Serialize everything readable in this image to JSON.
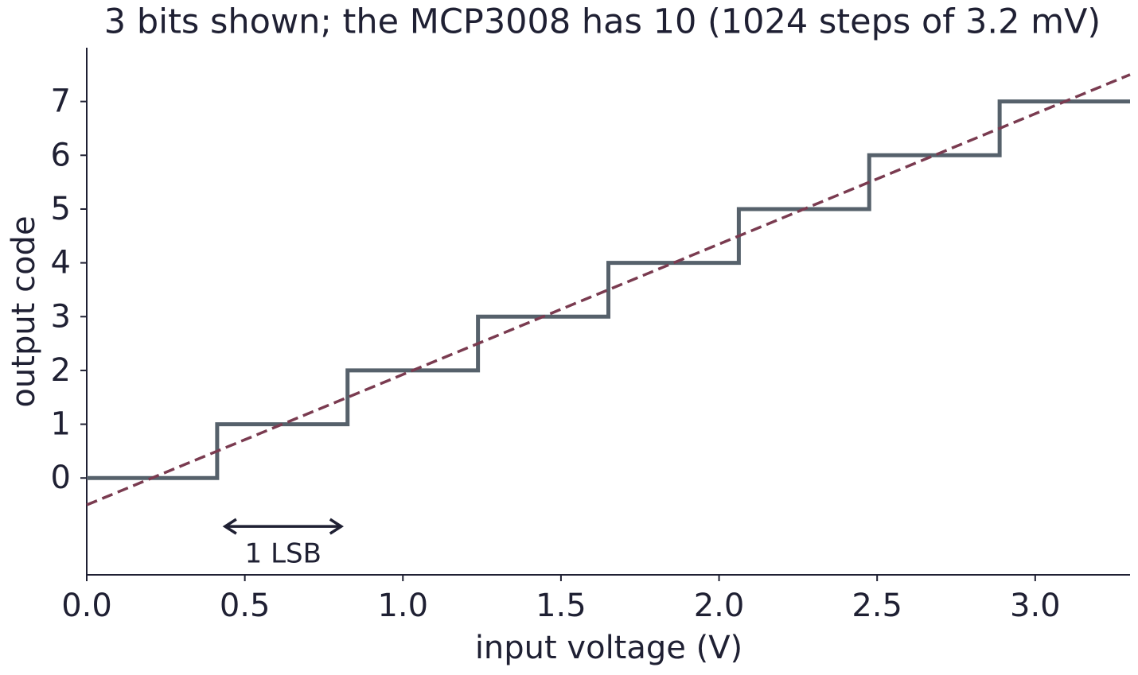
{
  "chart_data": {
    "type": "step",
    "title": "3 bits shown; the MCP3008 has 10 (1024 steps of 3.2 mV)",
    "x_label": "input voltage (V)",
    "y_label": "output code",
    "xlim": [
      0,
      3.3
    ],
    "ylim": [
      -1.8,
      8
    ],
    "xticks": [
      {
        "value": 0,
        "label": "0.0"
      },
      0.5,
      {
        "value": 1,
        "label": "1.0"
      },
      1.5,
      {
        "value": 2,
        "label": "2.0"
      },
      2.5,
      {
        "value": 3,
        "label": "3.0"
      }
    ],
    "yticks": [
      0,
      1,
      2,
      3,
      4,
      5,
      6,
      7
    ],
    "grid": false,
    "series": [
      {
        "color": "#56616b",
        "step": "post",
        "dash": false,
        "x": [
          0,
          0.4125,
          0.825,
          1.2375,
          1.65,
          2.0625,
          2.475,
          2.8875,
          3.3
        ],
        "values": [
          0,
          1,
          2,
          3,
          4,
          5,
          6,
          7,
          7
        ]
      },
      {
        "color": "#7a3b50",
        "dash": true,
        "x": [
          0,
          3.3
        ],
        "values": [
          -0.5,
          7.5
        ]
      }
    ],
    "annotation": {
      "text": "1 LSB",
      "x": [
        0.4125,
        0.825
      ],
      "y": -0.9,
      "color": "#1f2033"
    }
  }
}
